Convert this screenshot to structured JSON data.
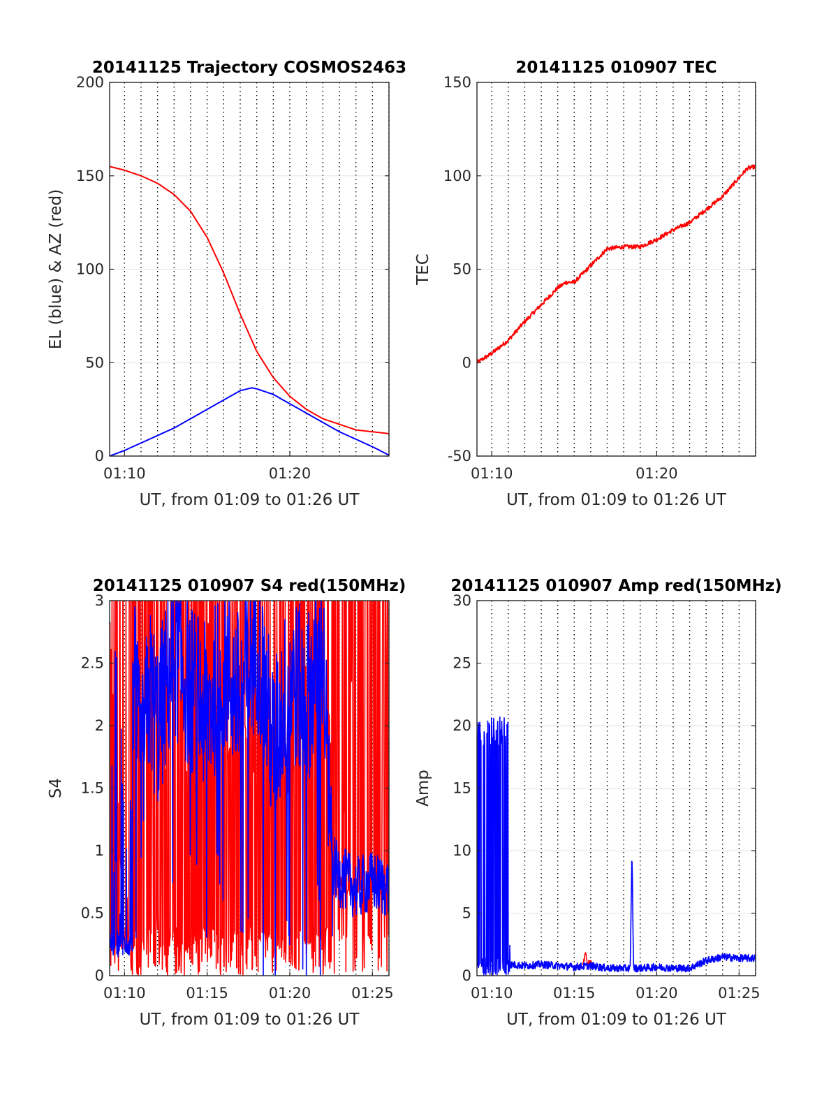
{
  "chart_data": [
    {
      "type": "line",
      "title": "20141125 Trajectory COSMOS2463",
      "xlabel": "UT, from 01:09 to 01:26 UT",
      "ylabel": "EL (blue) & AZ (red)",
      "xlim_minutes": [
        69.1,
        86.0
      ],
      "ylim": [
        0,
        200
      ],
      "x_ticks": [
        {
          "value": 70,
          "label": "01:10"
        },
        {
          "value": 80,
          "label": "01:20"
        }
      ],
      "y_ticks": [
        {
          "value": 0,
          "label": "0"
        },
        {
          "value": 50,
          "label": "50"
        },
        {
          "value": 100,
          "label": "100"
        },
        {
          "value": 150,
          "label": "150"
        },
        {
          "value": 200,
          "label": "200"
        }
      ],
      "grid": "dotted vertical every 1 min, horizontal at y ticks",
      "series": [
        {
          "color": "#ff0000",
          "x": [
            69.1,
            70,
            71,
            72,
            73,
            74,
            75,
            76,
            77,
            78,
            79,
            80,
            81,
            82,
            83,
            84,
            85,
            86
          ],
          "values": [
            155,
            153,
            150,
            146,
            140,
            131,
            117,
            98,
            76,
            56,
            42,
            32,
            25,
            20,
            17,
            14,
            13,
            12
          ]
        },
        {
          "color": "#0000ff",
          "x": [
            69.1,
            70,
            71,
            72,
            73,
            74,
            75,
            76,
            77,
            77.7,
            78,
            79,
            80,
            81,
            82,
            83,
            84,
            85,
            86
          ],
          "values": [
            0,
            3,
            7,
            11,
            15,
            20,
            25,
            30,
            35,
            36.5,
            36,
            33,
            28,
            23,
            18,
            13,
            9,
            5,
            0.5
          ]
        }
      ]
    },
    {
      "type": "line",
      "title": "20141125 010907 TEC",
      "xlabel": "UT, from 01:09 to 01:26 UT",
      "ylabel": "TEC",
      "xlim_minutes": [
        69.1,
        86.0
      ],
      "ylim": [
        -50,
        150
      ],
      "x_ticks": [
        {
          "value": 70,
          "label": "01:10"
        },
        {
          "value": 80,
          "label": "01:20"
        }
      ],
      "y_ticks": [
        {
          "value": -50,
          "label": "-50"
        },
        {
          "value": 0,
          "label": "0"
        },
        {
          "value": 50,
          "label": "50"
        },
        {
          "value": 100,
          "label": "100"
        },
        {
          "value": 150,
          "label": "150"
        }
      ],
      "grid": "dotted vertical every 1 min, horizontal at y ticks",
      "series": [
        {
          "color": "#ff0000",
          "x": [
            69.1,
            70,
            71,
            72,
            73,
            74,
            74.5,
            75,
            76,
            77,
            78,
            79,
            80,
            81,
            82,
            83,
            84,
            85,
            85.5,
            86
          ],
          "values": [
            0,
            5,
            12,
            22,
            31,
            40,
            43,
            43,
            52,
            61,
            62,
            62,
            66,
            71,
            75,
            82,
            89,
            99,
            104,
            105
          ]
        }
      ]
    },
    {
      "type": "line",
      "title": "20141125 010907 S4 red(150MHz)",
      "xlabel": "UT, from 01:09 to 01:26 UT",
      "ylabel": "S4",
      "xlim_minutes": [
        69.1,
        86.0
      ],
      "ylim": [
        0,
        3
      ],
      "x_ticks": [
        {
          "value": 70,
          "label": "01:10"
        },
        {
          "value": 75,
          "label": "01:15"
        },
        {
          "value": 80,
          "label": "01:20"
        },
        {
          "value": 85,
          "label": "01:25"
        }
      ],
      "y_ticks": [
        {
          "value": 0,
          "label": "0"
        },
        {
          "value": 0.5,
          "label": "0.5"
        },
        {
          "value": 1,
          "label": "1"
        },
        {
          "value": 1.5,
          "label": "1.5"
        },
        {
          "value": 2,
          "label": "2"
        },
        {
          "value": 2.5,
          "label": "2.5"
        },
        {
          "value": 3,
          "label": "3"
        }
      ],
      "grid": "dotted vertical every 1 min, horizontal at y ticks",
      "series": [
        {
          "color": "#ff0000",
          "x": [
            69.1,
            70,
            71,
            72,
            73,
            74,
            75,
            76,
            77,
            78,
            79,
            80,
            81,
            82,
            83,
            84,
            85,
            86
          ],
          "values": [
            2.9,
            0.2,
            2.8,
            0.4,
            3.0,
            1.2,
            2.9,
            1.6,
            2.2,
            1.5,
            2.0,
            1.4,
            2.5,
            3.0,
            0.6,
            3.0,
            0.2,
            3.0
          ]
        },
        {
          "color": "#0000ff",
          "x": [
            69.1,
            69.5,
            70,
            70.5,
            71,
            71.5,
            72,
            73,
            74,
            75,
            76,
            77,
            78,
            79,
            80,
            81,
            82,
            82.5,
            83,
            84,
            85,
            86
          ],
          "values": [
            0.2,
            0.15,
            0.2,
            2.5,
            1.6,
            2.3,
            2.0,
            2.6,
            2.3,
            2.1,
            2.5,
            2.2,
            2.7,
            1.8,
            2.4,
            2.2,
            2.6,
            0.9,
            0.8,
            0.7,
            0.75,
            0.7
          ]
        }
      ]
    },
    {
      "type": "line",
      "title": "20141125 010907 Amp red(150MHz)",
      "xlabel": "UT, from 01:09 to 01:26 UT",
      "ylabel": "Amp",
      "xlim_minutes": [
        69.1,
        86.0
      ],
      "ylim": [
        0,
        30
      ],
      "x_ticks": [
        {
          "value": 70,
          "label": "01:10"
        },
        {
          "value": 75,
          "label": "01:15"
        },
        {
          "value": 80,
          "label": "01:20"
        },
        {
          "value": 85,
          "label": "01:25"
        }
      ],
      "y_ticks": [
        {
          "value": 0,
          "label": "0"
        },
        {
          "value": 5,
          "label": "5"
        },
        {
          "value": 10,
          "label": "10"
        },
        {
          "value": 15,
          "label": "15"
        },
        {
          "value": 20,
          "label": "20"
        },
        {
          "value": 25,
          "label": "25"
        },
        {
          "value": 30,
          "label": "30"
        }
      ],
      "grid": "dotted vertical every 1 min, horizontal at y ticks",
      "series": [
        {
          "color": "#ff0000",
          "x": [
            75.5,
            75.7,
            75.8,
            76.0,
            76.1
          ],
          "values": [
            0.8,
            1.8,
            0.9,
            1.2,
            0.7
          ]
        },
        {
          "color": "#0000ff",
          "x": [
            69.1,
            70,
            71,
            71.1,
            72,
            73,
            74,
            75,
            76,
            77,
            78,
            78.4,
            78.5,
            78.6,
            79,
            80,
            81,
            82,
            83,
            84,
            85,
            86
          ],
          "values": [
            18.5,
            19,
            19,
            0.9,
            0.8,
            0.9,
            0.8,
            0.7,
            0.8,
            0.6,
            0.6,
            0.6,
            10,
            0.6,
            0.6,
            0.7,
            0.6,
            0.6,
            1.2,
            1.5,
            1.4,
            1.4
          ]
        }
      ]
    }
  ]
}
